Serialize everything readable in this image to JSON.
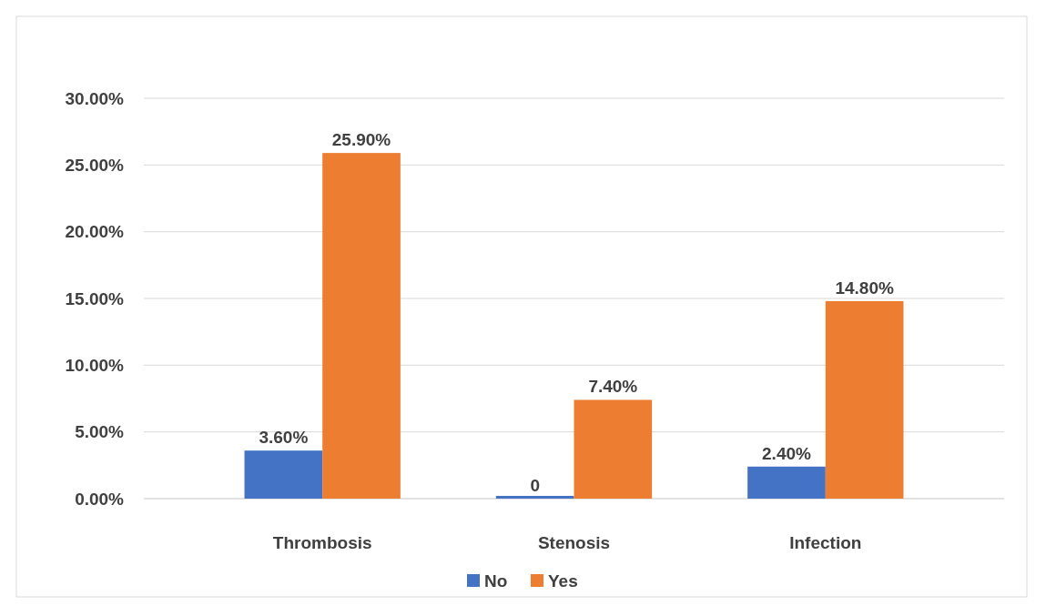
{
  "chart_data": {
    "type": "bar",
    "categories": [
      "Thrombosis",
      "Stenosis",
      "Infection"
    ],
    "series": [
      {
        "name": "No",
        "color": "#4472c4",
        "values": [
          3.6,
          0,
          2.4
        ],
        "value_labels": [
          "3.60%",
          "0",
          "2.40%"
        ]
      },
      {
        "name": "Yes",
        "color": "#ed7d31",
        "values": [
          25.9,
          7.4,
          14.8
        ],
        "value_labels": [
          "25.90%",
          "7.40%",
          "14.80%"
        ]
      }
    ],
    "ylim": [
      0,
      30
    ],
    "yticks": [
      {
        "value": 0,
        "label": "0.00%"
      },
      {
        "value": 5,
        "label": "5.00%"
      },
      {
        "value": 10,
        "label": "10.00%"
      },
      {
        "value": 15,
        "label": "15.00%"
      },
      {
        "value": 20,
        "label": "20.00%"
      },
      {
        "value": 25,
        "label": "25.00%"
      },
      {
        "value": 30,
        "label": "30.00%"
      }
    ],
    "grid": "y",
    "legend": "bottom"
  }
}
